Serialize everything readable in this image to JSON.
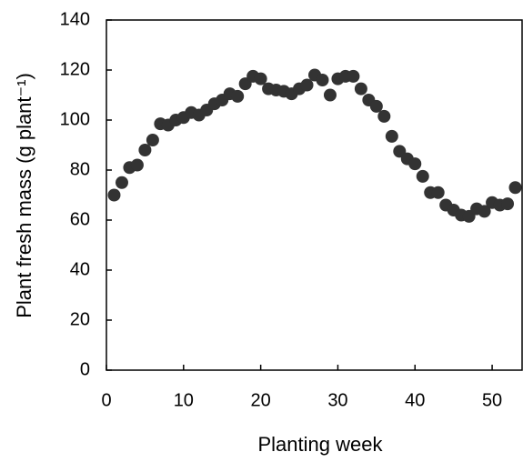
{
  "chart_data": {
    "type": "scatter",
    "xlabel": "Planting week",
    "ylabel": "Plant fresh mass (g plant⁻¹)",
    "x": [
      1,
      2,
      3,
      4,
      5,
      6,
      7,
      8,
      9,
      10,
      11,
      12,
      13,
      14,
      15,
      16,
      17,
      18,
      19,
      20,
      21,
      22,
      23,
      24,
      25,
      26,
      27,
      28,
      29,
      30,
      31,
      32,
      33,
      34,
      35,
      36,
      37,
      38,
      39,
      40,
      41,
      42,
      43,
      44,
      45,
      46,
      47,
      48,
      49,
      50,
      51,
      52,
      53
    ],
    "values": [
      70,
      75,
      81,
      82,
      88,
      92,
      98.5,
      98,
      100,
      101,
      103,
      102,
      104,
      106.5,
      108,
      110.5,
      109.5,
      114.5,
      117.5,
      116.5,
      112.5,
      112,
      111.5,
      110.5,
      112.5,
      114,
      118,
      116,
      110,
      116.5,
      117.5,
      117.5,
      112.5,
      108,
      105.5,
      101.5,
      93.5,
      87.5,
      84.5,
      82.5,
      77.5,
      71,
      71,
      66,
      64,
      62,
      61.5,
      64.5,
      63.5,
      67,
      66,
      66.5,
      73
    ],
    "color": "#333333",
    "xlim": [
      0,
      54
    ],
    "xticks": [
      0,
      10,
      20,
      30,
      40,
      50
    ],
    "ylim": [
      0,
      140
    ],
    "yticks": [
      0,
      20,
      40,
      60,
      80,
      100,
      120,
      140
    ]
  }
}
